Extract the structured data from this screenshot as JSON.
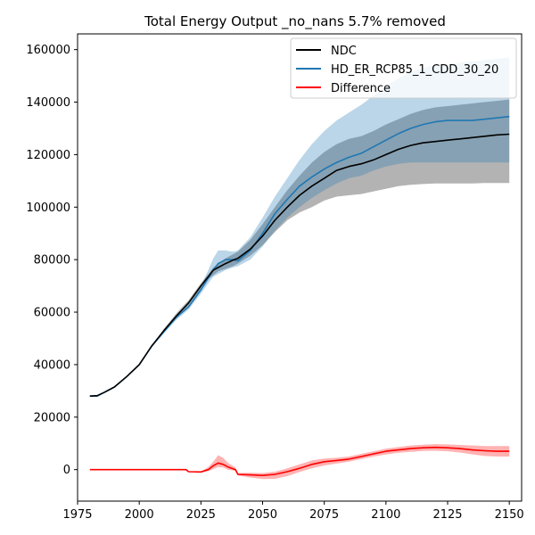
{
  "chart_data": {
    "type": "line",
    "title": "Total Energy Output _no_nans 5.7% removed",
    "xlabel": "",
    "ylabel": "",
    "xlim": [
      1975,
      2155
    ],
    "ylim": [
      -12000,
      166000
    ],
    "xticks": [
      1975,
      2000,
      2025,
      2050,
      2075,
      2100,
      2125,
      2150
    ],
    "yticks": [
      0,
      20000,
      40000,
      60000,
      80000,
      100000,
      120000,
      140000,
      160000
    ],
    "grid": false,
    "legend_position": "top-right",
    "series": [
      {
        "name": "NDC",
        "color": "#000000",
        "band_color": "#808080",
        "band_opacity": 0.6,
        "x": [
          1980,
          1983,
          1986,
          1990,
          1995,
          2000,
          2005,
          2010,
          2015,
          2020,
          2025,
          2028,
          2030,
          2032,
          2035,
          2038,
          2040,
          2045,
          2050,
          2055,
          2060,
          2065,
          2070,
          2075,
          2080,
          2085,
          2090,
          2095,
          2100,
          2105,
          2110,
          2115,
          2120,
          2125,
          2130,
          2135,
          2140,
          2145,
          2150
        ],
        "values": [
          28000,
          28200,
          29500,
          31500,
          35500,
          40000,
          47000,
          53000,
          58500,
          63500,
          70000,
          73500,
          76000,
          77000,
          78500,
          79800,
          80500,
          84000,
          89000,
          95000,
          100000,
          104500,
          108000,
          111000,
          114000,
          115500,
          116500,
          118000,
          120000,
          122000,
          123500,
          124500,
          125000,
          125500,
          126000,
          126500,
          127000,
          127500,
          127800
        ],
        "upper": [
          28000,
          28200,
          29500,
          31500,
          35500,
          40000,
          47000,
          53500,
          59500,
          64500,
          71000,
          74500,
          77000,
          78500,
          80500,
          82000,
          83000,
          87500,
          93500,
          100000,
          106500,
          112000,
          117000,
          121000,
          124000,
          126000,
          127000,
          129000,
          131500,
          133500,
          135500,
          137000,
          138000,
          138500,
          139000,
          139500,
          140000,
          140500,
          141000
        ],
        "lower": [
          28000,
          28200,
          29500,
          31500,
          35500,
          40000,
          46500,
          52500,
          57500,
          62500,
          69000,
          72500,
          74000,
          75500,
          76500,
          77500,
          78500,
          81500,
          85500,
          90500,
          95000,
          98000,
          100000,
          102500,
          104000,
          104500,
          105000,
          106000,
          107000,
          108000,
          108500,
          108800,
          109000,
          109000,
          109000,
          109000,
          109200,
          109200,
          109200
        ]
      },
      {
        "name": "HD_ER_RCP85_1_CDD_30_20",
        "color": "#1f77b4",
        "band_color": "#1f77b4",
        "band_opacity": 0.3,
        "x": [
          1980,
          1983,
          1986,
          1990,
          1995,
          2000,
          2005,
          2010,
          2015,
          2020,
          2025,
          2028,
          2030,
          2032,
          2035,
          2038,
          2040,
          2045,
          2050,
          2055,
          2060,
          2065,
          2070,
          2075,
          2080,
          2085,
          2090,
          2095,
          2100,
          2105,
          2110,
          2115,
          2120,
          2125,
          2130,
          2135,
          2140,
          2145,
          2150
        ],
        "values": [
          28000,
          28000,
          29500,
          31500,
          35500,
          40000,
          47000,
          52500,
          58000,
          62000,
          68500,
          73000,
          76000,
          78500,
          80000,
          80000,
          79500,
          83500,
          90000,
          97500,
          103000,
          108000,
          111500,
          114500,
          117000,
          119000,
          120500,
          123000,
          125500,
          128000,
          130000,
          131500,
          132500,
          133000,
          133000,
          133000,
          133500,
          134000,
          134500
        ],
        "upper": [
          28000,
          28000,
          29500,
          31500,
          35500,
          40000,
          47000,
          53000,
          58500,
          63000,
          70000,
          76000,
          80500,
          83500,
          83500,
          83000,
          83500,
          88500,
          96000,
          104000,
          111000,
          118000,
          124000,
          129000,
          133000,
          136000,
          139000,
          142500,
          146000,
          149000,
          151500,
          153000,
          154000,
          154500,
          155000,
          155500,
          156000,
          156500,
          157000
        ],
        "lower": [
          28000,
          28000,
          29500,
          31500,
          35500,
          40000,
          46500,
          52000,
          57000,
          61000,
          67000,
          71000,
          73500,
          74500,
          76000,
          77000,
          77500,
          80000,
          85000,
          91000,
          96000,
          100000,
          103500,
          106500,
          109000,
          111000,
          112000,
          114000,
          115500,
          116500,
          117000,
          117000,
          117000,
          117000,
          117000,
          117000,
          117000,
          117000,
          117000
        ]
      },
      {
        "name": "Difference",
        "color": "#ff0000",
        "band_color": "#ff0000",
        "band_opacity": 0.3,
        "x": [
          1980,
          1985,
          1990,
          1995,
          2000,
          2005,
          2010,
          2015,
          2019,
          2020,
          2025,
          2028,
          2030,
          2032,
          2034,
          2036,
          2039,
          2040,
          2045,
          2050,
          2055,
          2060,
          2065,
          2070,
          2075,
          2080,
          2085,
          2090,
          2095,
          2100,
          2105,
          2110,
          2115,
          2120,
          2125,
          2130,
          2135,
          2140,
          2145,
          2150
        ],
        "values": [
          0,
          0,
          0,
          0,
          0,
          0,
          0,
          0,
          0,
          -800,
          -900,
          0,
          1500,
          2500,
          2000,
          1000,
          0,
          -1800,
          -2000,
          -2200,
          -1800,
          -800,
          500,
          2000,
          3000,
          3500,
          4000,
          5000,
          6000,
          7000,
          7500,
          8000,
          8300,
          8500,
          8300,
          8000,
          7500,
          7200,
          7000,
          7000
        ],
        "upper": [
          0,
          0,
          0,
          0,
          0,
          0,
          0,
          0,
          0,
          -800,
          -800,
          1000,
          3000,
          5500,
          4500,
          2500,
          800,
          -1300,
          -1200,
          -1300,
          -800,
          500,
          2000,
          3500,
          4200,
          4500,
          5000,
          6000,
          7000,
          8000,
          8600,
          9200,
          9500,
          9700,
          9600,
          9400,
          9200,
          9000,
          9000,
          9000
        ],
        "lower": [
          0,
          0,
          0,
          0,
          0,
          0,
          0,
          0,
          0,
          -800,
          -1000,
          -600,
          200,
          1000,
          800,
          0,
          -500,
          -2300,
          -3000,
          -3600,
          -3500,
          -2500,
          -900,
          500,
          1600,
          2300,
          3000,
          4000,
          5000,
          5800,
          6400,
          6800,
          7100,
          7200,
          7000,
          6500,
          5800,
          5200,
          5000,
          5000
        ]
      }
    ]
  }
}
